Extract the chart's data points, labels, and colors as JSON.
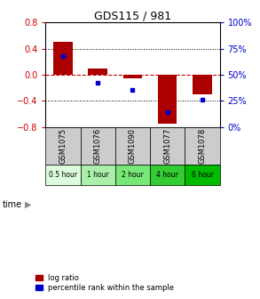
{
  "title": "GDS115 / 981",
  "samples": [
    "GSM1075",
    "GSM1076",
    "GSM1090",
    "GSM1077",
    "GSM1078"
  ],
  "time_labels": [
    "0.5 hour",
    "1 hour",
    "2 hour",
    "4 hour",
    "6 hour"
  ],
  "log_ratios": [
    0.5,
    0.1,
    -0.05,
    -0.75,
    -0.3
  ],
  "percentile_ranks": [
    68,
    42,
    35,
    14,
    26
  ],
  "bar_color": "#aa0000",
  "dot_color": "#0000cc",
  "ylim_left": [
    -0.8,
    0.8
  ],
  "ylim_right": [
    0,
    100
  ],
  "yticks_left": [
    -0.8,
    -0.4,
    0,
    0.4,
    0.8
  ],
  "yticks_right": [
    0,
    25,
    50,
    75,
    100
  ],
  "zero_line_color": "#cc0000",
  "legend_log_ratio": "log ratio",
  "legend_percentile": "percentile rank within the sample",
  "time_label": "time",
  "sample_box_color": "#cccccc",
  "time_bg_colors": [
    "#ddfcdd",
    "#aaf0aa",
    "#77e877",
    "#33cc33",
    "#00bb00"
  ],
  "title_fontsize": 9,
  "tick_fontsize": 7,
  "bar_width": 0.55
}
